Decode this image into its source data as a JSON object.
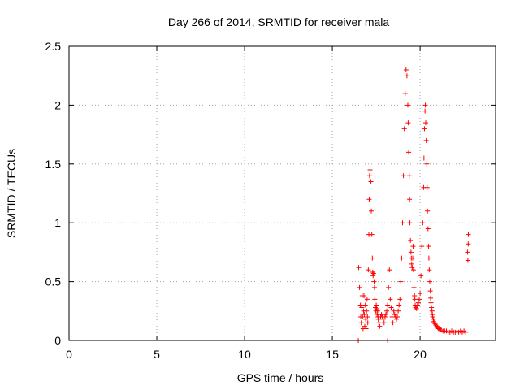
{
  "chart_data": {
    "type": "scatter",
    "title": "Day 266 of 2014, SRMTID for receiver mala",
    "xlabel": "GPS time / hours",
    "ylabel": "SRMTID / TECUs",
    "xlim": [
      0,
      24.3
    ],
    "ylim": [
      0,
      2.5
    ],
    "xticks": [
      0,
      5,
      10,
      15,
      20
    ],
    "xtick_labels": [
      "0",
      "5",
      "10",
      "15",
      "20"
    ],
    "yticks": [
      0,
      0.5,
      1,
      1.5,
      2,
      2.5
    ],
    "ytick_labels": [
      "0",
      "0.5",
      "1",
      "1.5",
      "2",
      "2.5"
    ],
    "grid": true,
    "legend": "none",
    "marker": "+",
    "color": "#ff0000",
    "x": [
      16.5,
      16.55,
      16.6,
      16.62,
      16.65,
      16.68,
      16.7,
      16.72,
      16.75,
      16.78,
      16.8,
      16.82,
      16.85,
      16.88,
      16.9,
      16.92,
      16.95,
      16.98,
      17.0,
      17.02,
      17.05,
      17.08,
      17.1,
      17.12,
      17.15,
      17.2,
      17.22,
      17.25,
      17.28,
      17.3,
      17.32,
      17.35,
      17.38,
      17.4,
      17.42,
      17.45,
      17.48,
      17.5,
      17.52,
      17.55,
      17.58,
      17.6,
      17.62,
      17.65,
      17.7,
      17.75,
      17.8,
      17.85,
      17.9,
      17.95,
      18.0,
      18.05,
      18.1,
      18.15,
      18.2,
      18.25,
      18.3,
      18.35,
      18.4,
      18.45,
      18.5,
      18.55,
      18.6,
      18.65,
      18.7,
      18.75,
      18.8,
      18.85,
      18.9,
      18.95,
      19.0,
      19.05,
      19.1,
      19.15,
      19.2,
      19.25,
      19.3,
      19.32,
      19.35,
      19.38,
      19.4,
      19.42,
      19.45,
      19.48,
      19.5,
      19.52,
      19.55,
      19.58,
      19.6,
      19.62,
      19.65,
      19.68,
      19.7,
      19.72,
      19.75,
      19.8,
      19.85,
      19.9,
      19.95,
      20.0,
      20.05,
      20.1,
      20.15,
      20.2,
      20.22,
      20.25,
      20.28,
      20.3,
      20.32,
      20.35,
      20.38,
      20.4,
      20.42,
      20.45,
      20.48,
      20.5,
      20.52,
      20.55,
      20.58,
      20.6,
      20.62,
      20.65,
      20.68,
      20.7,
      20.72,
      20.75,
      20.78,
      20.8,
      20.85,
      20.9,
      20.95,
      21.0,
      21.05,
      21.1,
      21.15,
      21.2,
      21.3,
      21.4,
      21.5,
      21.6,
      21.7,
      21.8,
      21.9,
      22.0,
      22.1,
      22.2,
      22.3,
      22.4,
      22.5,
      22.6,
      22.7,
      22.75,
      22.72,
      22.74,
      18.15,
      16.48
    ],
    "y": [
      0.62,
      0.45,
      0.3,
      0.2,
      0.15,
      0.28,
      0.38,
      0.2,
      0.1,
      0.25,
      0.38,
      0.22,
      0.12,
      0.3,
      0.18,
      0.1,
      0.25,
      0.35,
      0.2,
      0.15,
      0.6,
      0.9,
      1.2,
      1.4,
      1.45,
      1.35,
      1.1,
      0.9,
      0.7,
      0.58,
      0.55,
      0.57,
      0.5,
      0.45,
      0.35,
      0.28,
      0.25,
      0.3,
      0.27,
      0.22,
      0.25,
      0.2,
      0.18,
      0.15,
      0.12,
      0.2,
      0.22,
      0.2,
      0.18,
      0.15,
      0.2,
      0.22,
      0.25,
      0.3,
      0.45,
      0.6,
      0.35,
      0.28,
      0.2,
      0.15,
      0.25,
      0.22,
      0.2,
      0.18,
      0.2,
      0.25,
      0.3,
      0.35,
      0.5,
      0.7,
      1.0,
      1.4,
      1.8,
      2.1,
      2.3,
      2.25,
      2.0,
      1.85,
      1.6,
      1.4,
      1.2,
      1.0,
      0.85,
      0.75,
      0.7,
      0.65,
      0.62,
      0.7,
      0.8,
      0.6,
      0.45,
      0.38,
      0.35,
      0.3,
      0.28,
      0.27,
      0.3,
      0.32,
      0.35,
      0.4,
      0.55,
      0.8,
      1.0,
      1.3,
      1.55,
      1.8,
      1.95,
      2.0,
      1.85,
      1.7,
      1.5,
      1.3,
      1.1,
      0.95,
      0.8,
      0.7,
      0.6,
      0.5,
      0.42,
      0.36,
      0.32,
      0.28,
      0.25,
      0.22,
      0.2,
      0.18,
      0.16,
      0.15,
      0.14,
      0.13,
      0.12,
      0.11,
      0.1,
      0.1,
      0.09,
      0.09,
      0.08,
      0.08,
      0.08,
      0.07,
      0.07,
      0.08,
      0.07,
      0.07,
      0.08,
      0.07,
      0.08,
      0.07,
      0.08,
      0.07,
      0.75,
      0.9,
      0.68,
      0.82,
      0.0,
      0.0
    ]
  }
}
